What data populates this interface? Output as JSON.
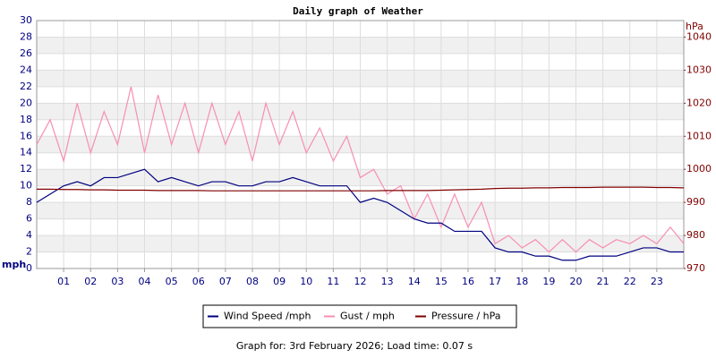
{
  "chart_data": {
    "type": "line",
    "title": "Daily graph of Weather",
    "ylabel": "mph",
    "y2label": "hPa",
    "footer": "Graph for: 3rd February 2026; Load time: 0.07 s",
    "xlim": [
      0,
      24
    ],
    "xticks": [
      {
        "value": 1,
        "label": "01"
      },
      {
        "value": 2,
        "label": "02"
      },
      {
        "value": 3,
        "label": "03"
      },
      {
        "value": 4,
        "label": "04"
      },
      {
        "value": 5,
        "label": "05"
      },
      {
        "value": 6,
        "label": "06"
      },
      {
        "value": 7,
        "label": "07"
      },
      {
        "value": 8,
        "label": "08"
      },
      {
        "value": 9,
        "label": "09"
      },
      {
        "value": 10,
        "label": "10"
      },
      {
        "value": 11,
        "label": "11"
      },
      {
        "value": 12,
        "label": "12"
      },
      {
        "value": 13,
        "label": "13"
      },
      {
        "value": 14,
        "label": "14"
      },
      {
        "value": 15,
        "label": "15"
      },
      {
        "value": 16,
        "label": "16"
      },
      {
        "value": 17,
        "label": "17"
      },
      {
        "value": 18,
        "label": "18"
      },
      {
        "value": 19,
        "label": "19"
      },
      {
        "value": 20,
        "label": "20"
      },
      {
        "value": 21,
        "label": "21"
      },
      {
        "value": 22,
        "label": "22"
      },
      {
        "value": 23,
        "label": "23"
      }
    ],
    "ylim": [
      0,
      30
    ],
    "yticks": [
      0,
      2,
      4,
      6,
      8,
      10,
      12,
      14,
      16,
      18,
      20,
      22,
      24,
      26,
      28,
      30
    ],
    "y2lim": [
      970,
      1045
    ],
    "y2ticks": [
      970,
      980,
      990,
      1000,
      1010,
      1020,
      1030,
      1040
    ],
    "grid": true,
    "legend": "bottom",
    "x": [
      0,
      0.5,
      1,
      1.5,
      2,
      2.5,
      3,
      3.5,
      4,
      4.5,
      5,
      5.5,
      6,
      6.5,
      7,
      7.5,
      8,
      8.5,
      9,
      9.5,
      10,
      10.5,
      11,
      11.5,
      12,
      12.5,
      13,
      13.5,
      14,
      14.5,
      15,
      15.5,
      16,
      16.5,
      17,
      17.5,
      18,
      18.5,
      19,
      19.5,
      20,
      20.5,
      21,
      21.5,
      22,
      22.5,
      23,
      23.5,
      24
    ],
    "series": [
      {
        "name": "Gust / mph",
        "color": "#f78fb3",
        "values": [
          15,
          18,
          13,
          20,
          14,
          19,
          15,
          22,
          14,
          21,
          15,
          20,
          14,
          20,
          15,
          19,
          13,
          20,
          15,
          19,
          14,
          17,
          13,
          16,
          11,
          12,
          9,
          10,
          6,
          9,
          5,
          9,
          5,
          8,
          3,
          4,
          2.5,
          3.5,
          2,
          3.5,
          2,
          3.5,
          2.5,
          3.5,
          3,
          4,
          3,
          5,
          3
        ]
      },
      {
        "name": "Wind Speed /mph",
        "color": "#000080",
        "values": [
          8,
          9,
          10,
          10.5,
          10,
          11,
          11,
          11.5,
          12,
          10.5,
          11,
          10.5,
          10,
          10.5,
          10.5,
          10,
          10,
          10.5,
          10.5,
          11,
          10.5,
          10,
          10,
          10,
          8,
          8.5,
          8,
          7,
          6,
          5.5,
          5.5,
          4.5,
          4.5,
          4.5,
          2.5,
          2,
          2,
          1.5,
          1.5,
          1,
          1,
          1.5,
          1.5,
          1.5,
          2,
          2.5,
          2.5,
          2,
          2
        ]
      },
      {
        "name": "Pressure / hPa",
        "color": "#800000",
        "axis": "y2",
        "values": [
          994,
          994,
          993.9,
          993.9,
          993.8,
          993.8,
          993.7,
          993.7,
          993.7,
          993.6,
          993.6,
          993.6,
          993.6,
          993.5,
          993.5,
          993.5,
          993.5,
          993.5,
          993.5,
          993.5,
          993.5,
          993.5,
          993.5,
          993.5,
          993.5,
          993.5,
          993.6,
          993.6,
          993.6,
          993.6,
          993.7,
          993.8,
          993.9,
          994,
          994.2,
          994.3,
          994.3,
          994.4,
          994.4,
          994.5,
          994.5,
          994.5,
          994.6,
          994.6,
          994.6,
          994.6,
          994.5,
          994.5,
          994.4
        ]
      }
    ]
  }
}
